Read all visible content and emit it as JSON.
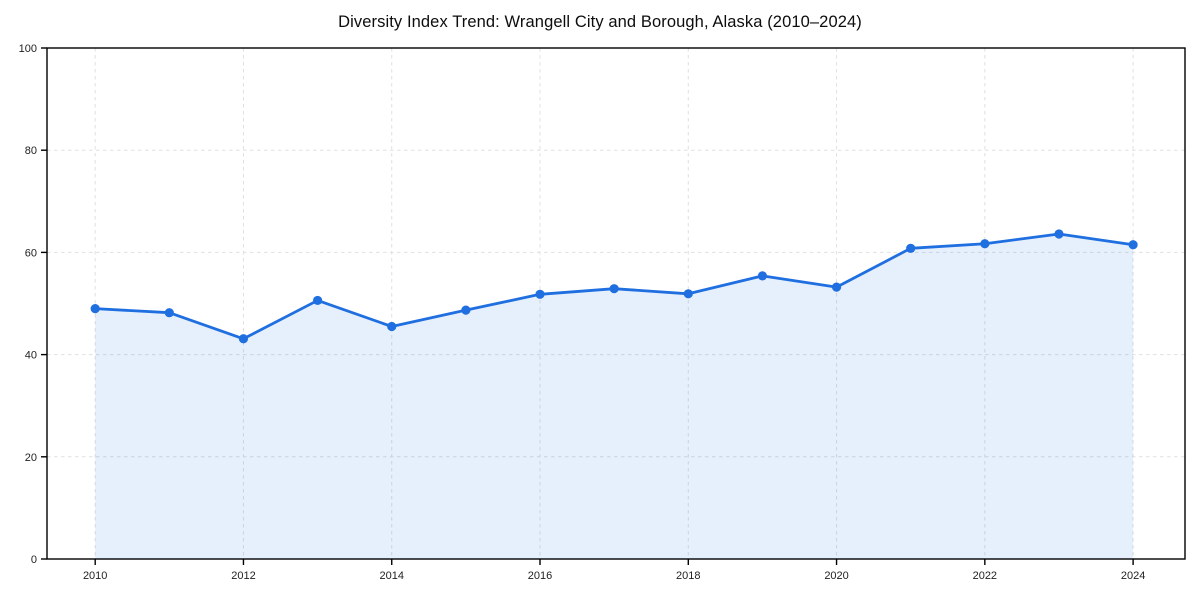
{
  "chart_data": {
    "type": "area",
    "title": "Diversity Index Trend: Wrangell City and Borough, Alaska (2010–2024)",
    "xlabel": "",
    "ylabel": "",
    "x": [
      2010,
      2011,
      2012,
      2013,
      2014,
      2015,
      2016,
      2017,
      2018,
      2019,
      2020,
      2021,
      2022,
      2023,
      2024
    ],
    "series": [
      {
        "name": "Diversity Index",
        "values": [
          49.0,
          48.2,
          43.1,
          50.6,
          45.5,
          48.7,
          51.8,
          52.9,
          51.9,
          55.4,
          53.2,
          60.8,
          61.7,
          63.6,
          61.5
        ]
      }
    ],
    "ylim": [
      0,
      100
    ],
    "xlim": [
      2009.35,
      2024.7
    ],
    "y_ticks": [
      0,
      20,
      40,
      60,
      80,
      100
    ],
    "x_ticks": [
      2010,
      2012,
      2014,
      2016,
      2018,
      2020,
      2022,
      2024
    ],
    "grid": "dashed",
    "legend": "none",
    "marker": "circle",
    "colors": {
      "line": "#1f6fe0",
      "fill": "#e8f0fc",
      "grid": "#e0e0e0",
      "axis": "#000000",
      "tick_text": "#222222",
      "title_text": "#0d0d0d",
      "background": "#ffffff"
    }
  }
}
